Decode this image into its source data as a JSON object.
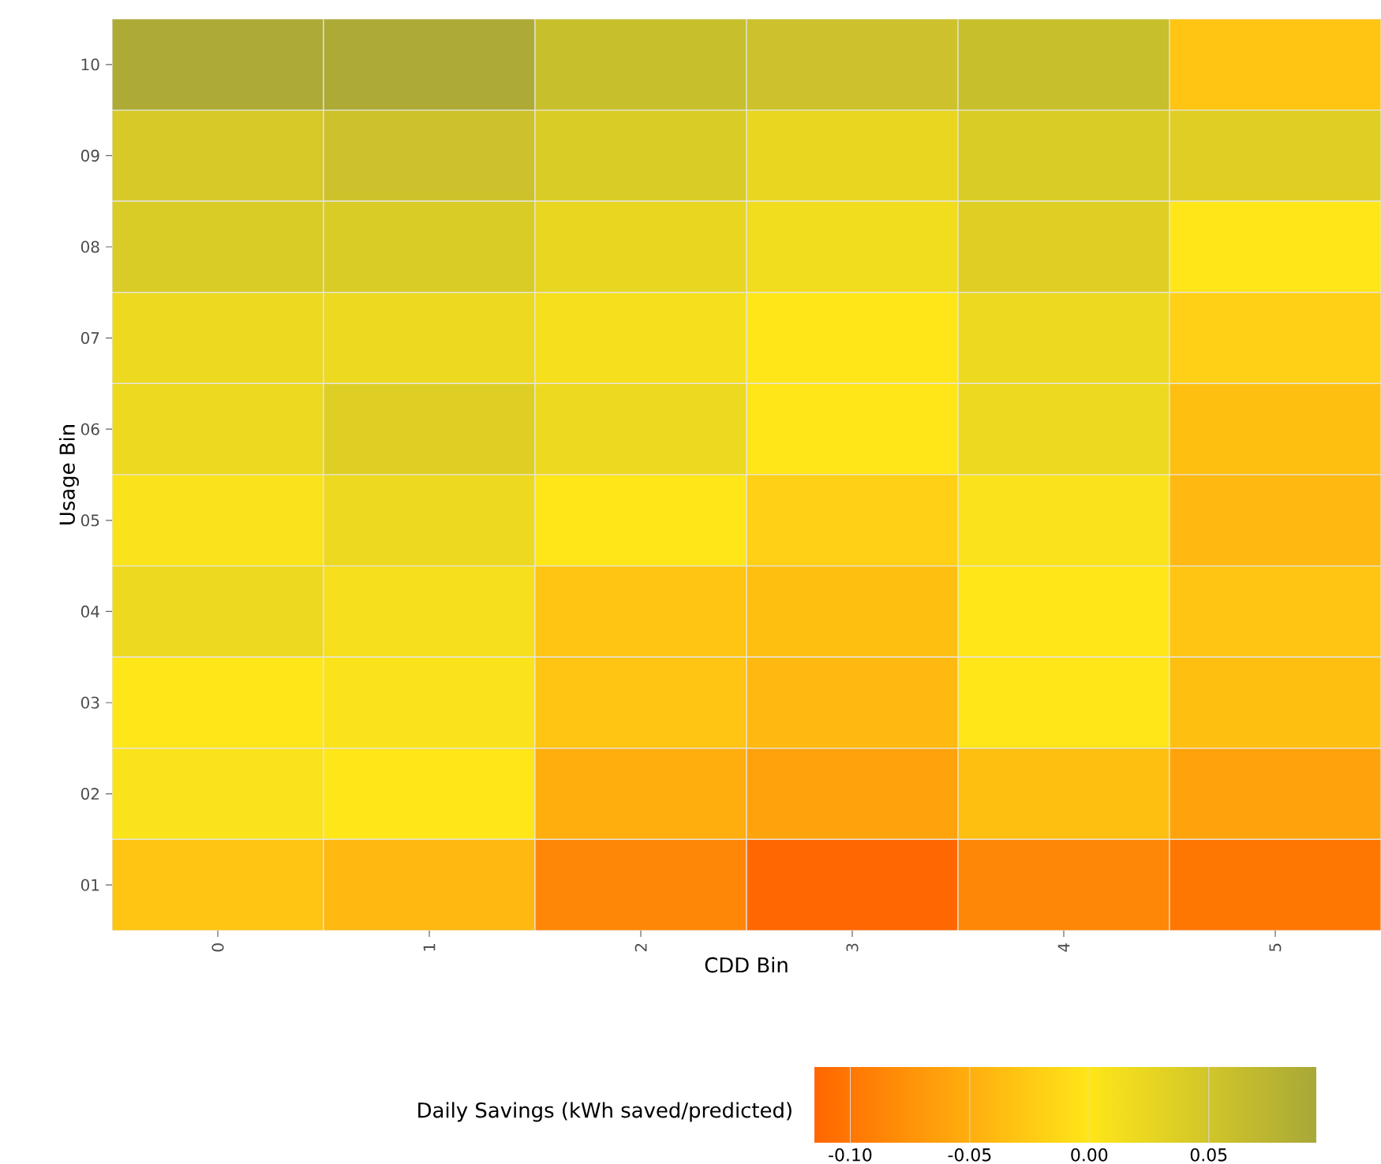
{
  "chart_data": {
    "type": "heatmap",
    "xlabel": "CDD Bin",
    "ylabel": "Usage Bin",
    "clabel": "Daily Savings (kWh saved/predicted)",
    "categories": [
      "0",
      "1",
      "2",
      "3",
      "4",
      "5"
    ],
    "y_categories": [
      "10",
      "09",
      "08",
      "07",
      "06",
      "05",
      "04",
      "03",
      "02",
      "01"
    ],
    "cells": [
      [
        0.09,
        0.09,
        0.06,
        0.055,
        0.06,
        -0.03
      ],
      [
        0.045,
        0.055,
        0.04,
        0.025,
        0.04,
        0.035
      ],
      [
        0.04,
        0.04,
        0.025,
        0.015,
        0.035,
        0.0
      ],
      [
        0.02,
        0.02,
        0.01,
        0.0,
        0.02,
        -0.02
      ],
      [
        0.02,
        0.035,
        0.02,
        0.0,
        0.02,
        -0.035
      ],
      [
        0.005,
        0.02,
        0.0,
        -0.02,
        0.005,
        -0.04
      ],
      [
        0.02,
        0.01,
        -0.03,
        -0.035,
        0.0,
        -0.03
      ],
      [
        0.0,
        0.005,
        -0.03,
        -0.04,
        0.0,
        -0.035
      ],
      [
        0.005,
        0.0,
        -0.05,
        -0.06,
        -0.035,
        -0.06
      ],
      [
        -0.03,
        -0.04,
        -0.085,
        -0.113,
        -0.085,
        -0.1
      ]
    ],
    "clim": [
      -0.115,
      0.095
    ],
    "cticks": [
      {
        "value": -0.1,
        "label": "-0.10"
      },
      {
        "value": -0.05,
        "label": "-0.05"
      },
      {
        "value": 0,
        "label": "0.00"
      },
      {
        "value": 0.05,
        "label": "0.05"
      }
    ]
  }
}
